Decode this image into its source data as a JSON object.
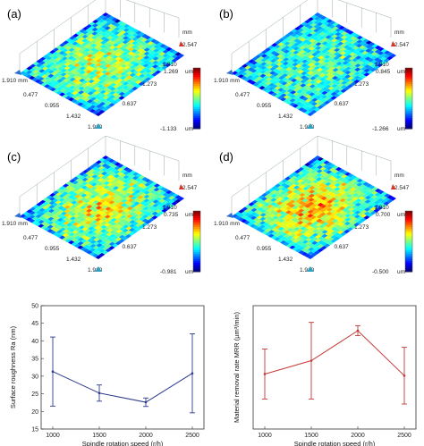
{
  "colors": {
    "surface_low": "#1f4fc8",
    "surface_mid": "#2fb84a",
    "surface_high": "#e0241c",
    "line_roughness": "#2d3c8c",
    "line_mrr": "#c23a36",
    "axis": "#333333"
  },
  "panels": [
    {
      "id": "a",
      "label": "(a)",
      "front_ticks": [
        "0.477",
        "0.955",
        "1.432",
        "1.910"
      ],
      "side_ticks": [
        "0.637",
        "1.273",
        "1.910",
        "2.547"
      ],
      "side_unit": "mm",
      "unit_label": "1.910 mm",
      "colorbar": {
        "max": "1.269",
        "min": "-1.133",
        "unit": "um"
      },
      "high_fraction": 0.45
    },
    {
      "id": "b",
      "label": "(b)",
      "front_ticks": [
        "0.477",
        "0.955",
        "1.432",
        "1.910"
      ],
      "side_ticks": [
        "0.637",
        "1.273",
        "1.910",
        "2.547"
      ],
      "side_unit": "mm",
      "unit_label": "1.910 mm",
      "colorbar": {
        "max": "0.845",
        "min": "-1.266",
        "unit": "um"
      },
      "high_fraction": 0.2
    },
    {
      "id": "c",
      "label": "(c)",
      "front_ticks": [
        "0.477",
        "0.955",
        "1.432",
        "1.910"
      ],
      "side_ticks": [
        "0.637",
        "1.273",
        "1.910",
        "2.547"
      ],
      "side_unit": "mm",
      "unit_label": "1.910 mm",
      "colorbar": {
        "max": "0.735",
        "min": "-0.981",
        "unit": "um"
      },
      "high_fraction": 0.55
    },
    {
      "id": "d",
      "label": "(d)",
      "front_ticks": [
        "0.477",
        "0.955",
        "1.432",
        "1.910"
      ],
      "side_ticks": [
        "0.637",
        "1.273",
        "1.910",
        "2.547"
      ],
      "side_unit": "mm",
      "unit_label": "1.910 mm",
      "colorbar": {
        "max": "0.700",
        "min": "-0.500",
        "unit": "um"
      },
      "high_fraction": 0.7
    }
  ],
  "chart_data": [
    {
      "type": "line",
      "title": "",
      "xlabel": "Spindle rotation speed (r/h)",
      "ylabel": "Surface roughness Ra (nm)",
      "x": [
        1000,
        1500,
        2000,
        2500
      ],
      "xlim": [
        875,
        2625
      ],
      "ylim": [
        15,
        50
      ],
      "xticks": [
        "1000",
        "1500",
        "2000",
        "2500"
      ],
      "yticks": [
        "15",
        "20",
        "25",
        "30",
        "35",
        "40",
        "45",
        "50"
      ],
      "series": [
        {
          "values": [
            31.3,
            25.2,
            22.6,
            30.8
          ],
          "error": [
            9.8,
            2.3,
            1.2,
            11.2
          ]
        }
      ]
    },
    {
      "type": "line",
      "title": "",
      "xlabel": "Spindle rotation speed (r/h)",
      "ylabel": "Material removal rate MRR (µm³/min)",
      "x": [
        1000,
        1500,
        2000,
        2500
      ],
      "xlim": [
        875,
        2625
      ],
      "ylim": [
        3.5,
        7.2
      ],
      "xticks": [
        "1000",
        "1500",
        "2000",
        "2500"
      ],
      "yticks": [],
      "series": [
        {
          "values": [
            5.15,
            5.55,
            6.45,
            5.1
          ],
          "error": [
            0.75,
            1.15,
            0.15,
            0.85
          ]
        }
      ]
    }
  ]
}
